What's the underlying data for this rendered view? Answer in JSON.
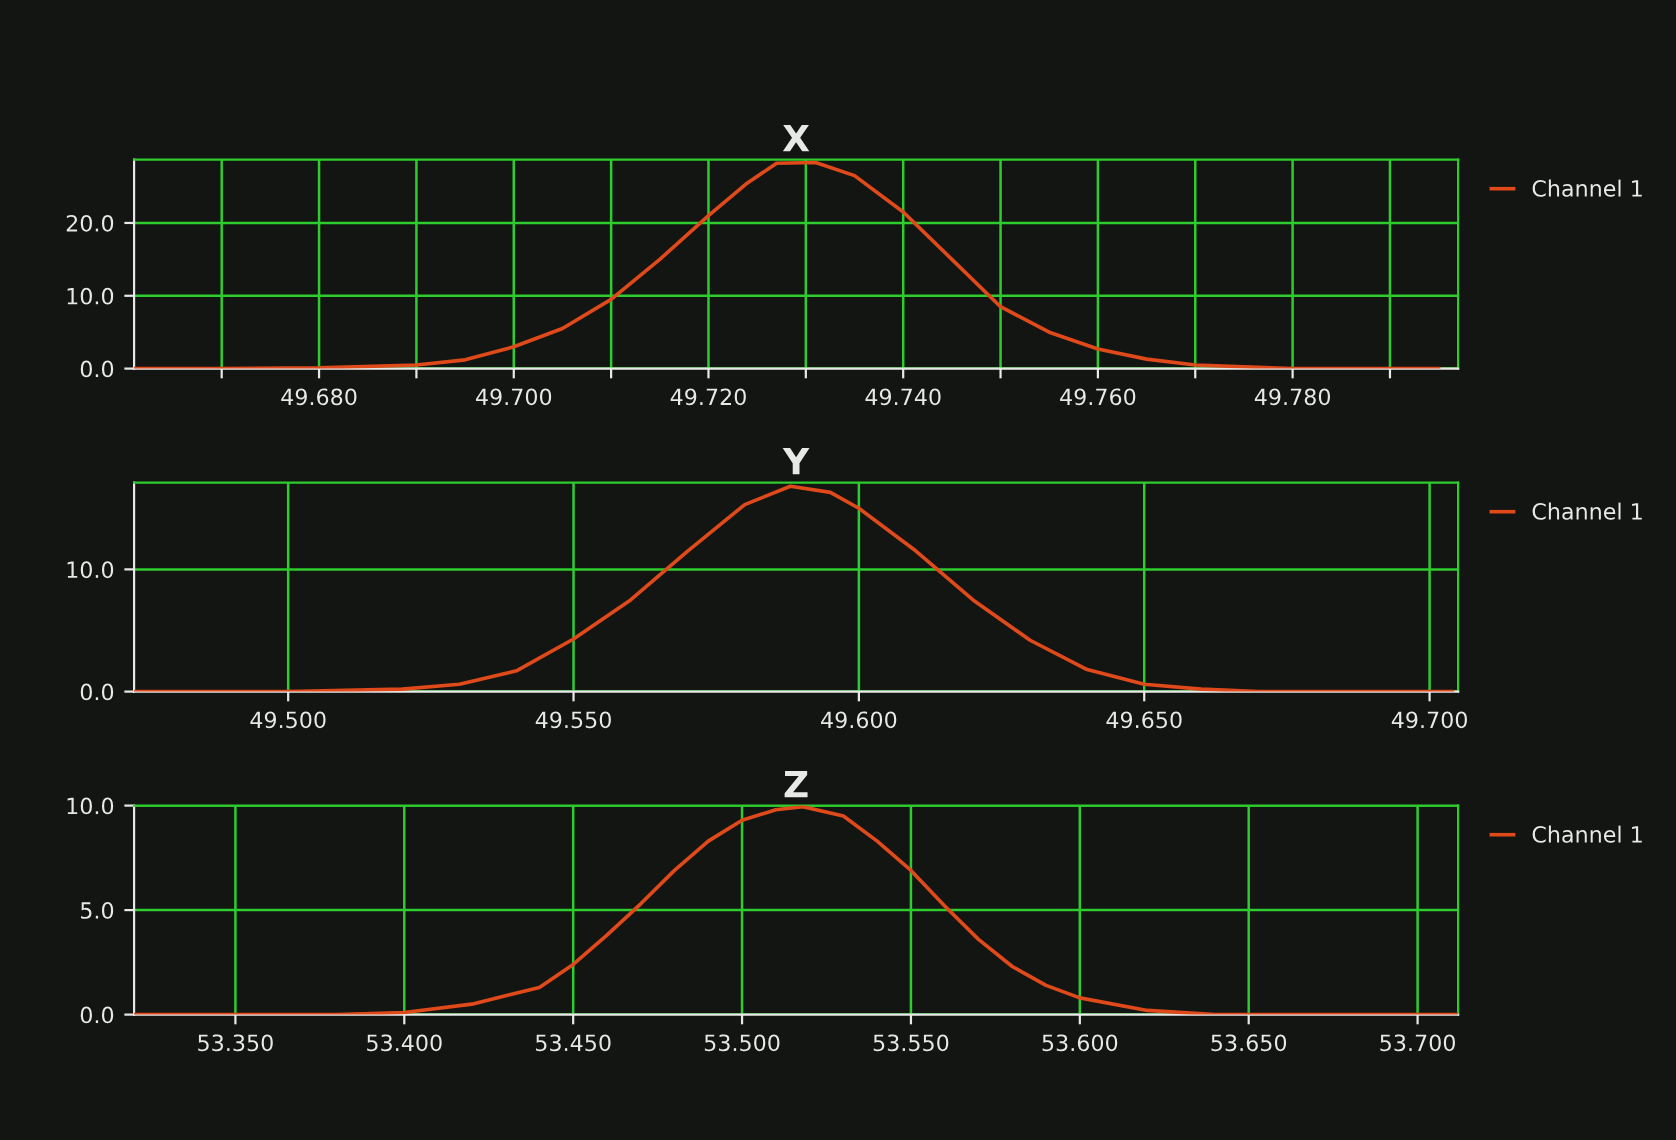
{
  "chart_data": [
    {
      "type": "line",
      "title": "X",
      "grid": true,
      "legend": "top right",
      "marker": "none",
      "line_style": "solid",
      "xlim": [
        49.661,
        49.797
      ],
      "ylim": [
        0,
        28.7
      ],
      "xticks": [
        {
          "value": 49.67,
          "label": null
        },
        {
          "value": 49.68,
          "label": "49.680"
        },
        {
          "value": 49.69,
          "label": null
        },
        {
          "value": 49.7,
          "label": "49.700"
        },
        {
          "value": 49.71,
          "label": null
        },
        {
          "value": 49.72,
          "label": "49.720"
        },
        {
          "value": 49.73,
          "label": null
        },
        {
          "value": 49.74,
          "label": "49.740"
        },
        {
          "value": 49.75,
          "label": null
        },
        {
          "value": 49.76,
          "label": "49.760"
        },
        {
          "value": 49.77,
          "label": null
        },
        {
          "value": 49.78,
          "label": "49.780"
        },
        {
          "value": 49.79,
          "label": null
        }
      ],
      "yticks": [
        {
          "value": 0,
          "label": "0.0"
        },
        {
          "value": 10,
          "label": "10.0"
        },
        {
          "value": 20,
          "label": "20.0"
        }
      ],
      "series": [
        {
          "name": "Channel 1",
          "color": "#e04a1a",
          "x": [
            49.661,
            49.67,
            49.68,
            49.69,
            49.695,
            49.7,
            49.705,
            49.71,
            49.715,
            49.72,
            49.724,
            49.727,
            49.731,
            49.735,
            49.74,
            49.745,
            49.75,
            49.755,
            49.76,
            49.765,
            49.77,
            49.78,
            49.79,
            49.795
          ],
          "values": [
            0,
            0,
            0.1,
            0.5,
            1.2,
            3.0,
            5.5,
            9.5,
            15,
            21,
            25.5,
            28.2,
            28.3,
            26.5,
            21.5,
            15,
            8.5,
            5,
            2.7,
            1.3,
            0.5,
            0,
            0,
            0
          ]
        }
      ]
    },
    {
      "type": "line",
      "title": "Y",
      "grid": true,
      "legend": "top right",
      "marker": "none",
      "line_style": "solid",
      "xlim": [
        49.473,
        49.705
      ],
      "ylim": [
        0,
        17.1
      ],
      "xticks": [
        {
          "value": 49.5,
          "label": "49.500"
        },
        {
          "value": 49.55,
          "label": "49.550"
        },
        {
          "value": 49.6,
          "label": "49.600"
        },
        {
          "value": 49.65,
          "label": "49.650"
        },
        {
          "value": 49.7,
          "label": "49.700"
        }
      ],
      "yticks": [
        {
          "value": 0,
          "label": "0.0"
        },
        {
          "value": 10,
          "label": "10.0"
        }
      ],
      "series": [
        {
          "name": "Channel 1",
          "color": "#e04a1a",
          "x": [
            49.473,
            49.5,
            49.52,
            49.53,
            49.54,
            49.55,
            49.56,
            49.57,
            49.58,
            49.588,
            49.595,
            49.6,
            49.61,
            49.62,
            49.63,
            49.64,
            49.65,
            49.66,
            49.67,
            49.704
          ],
          "values": [
            0,
            0,
            0.2,
            0.6,
            1.7,
            4.3,
            7.5,
            11.5,
            15.3,
            16.8,
            16.3,
            15,
            11.5,
            7.5,
            4.2,
            1.8,
            0.6,
            0.2,
            0,
            0
          ]
        }
      ]
    },
    {
      "type": "line",
      "title": "Z",
      "grid": true,
      "legend": "top right",
      "marker": "none",
      "line_style": "solid",
      "xlim": [
        53.32,
        53.712
      ],
      "ylim": [
        0,
        10
      ],
      "xticks": [
        {
          "value": 53.35,
          "label": "53.350"
        },
        {
          "value": 53.4,
          "label": "53.400"
        },
        {
          "value": 53.45,
          "label": "53.450"
        },
        {
          "value": 53.5,
          "label": "53.500"
        },
        {
          "value": 53.55,
          "label": "53.550"
        },
        {
          "value": 53.6,
          "label": "53.600"
        },
        {
          "value": 53.65,
          "label": "53.650"
        },
        {
          "value": 53.7,
          "label": "53.700"
        }
      ],
      "yticks": [
        {
          "value": 0,
          "label": "0.0"
        },
        {
          "value": 5,
          "label": "5.0"
        },
        {
          "value": 10,
          "label": "10.0"
        }
      ],
      "series": [
        {
          "name": "Channel 1",
          "color": "#e04a1a",
          "x": [
            53.32,
            53.38,
            53.4,
            53.42,
            53.44,
            53.45,
            53.46,
            53.47,
            53.48,
            53.49,
            53.5,
            53.51,
            53.518,
            53.53,
            53.54,
            53.55,
            53.56,
            53.57,
            53.58,
            53.59,
            53.6,
            53.62,
            53.64,
            53.712
          ],
          "values": [
            0,
            0,
            0.1,
            0.5,
            1.3,
            2.4,
            3.8,
            5.3,
            6.9,
            8.3,
            9.3,
            9.8,
            9.95,
            9.5,
            8.3,
            6.9,
            5.2,
            3.6,
            2.3,
            1.4,
            0.8,
            0.2,
            0,
            0
          ]
        }
      ]
    }
  ]
}
